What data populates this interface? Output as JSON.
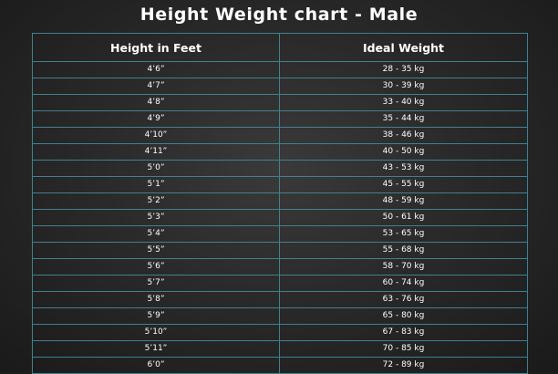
{
  "title": "Height Weight chart - Male",
  "columns": [
    "Height in  Feet",
    "Ideal Weight"
  ],
  "chart_data": {
    "type": "table",
    "title": "Height Weight chart - Male",
    "columns": [
      "Height in  Feet",
      "Ideal Weight"
    ],
    "rows": [
      [
        "4’6”",
        "28 - 35 kg"
      ],
      [
        "4’7”",
        "30 - 39 kg"
      ],
      [
        "4’8”",
        "33 - 40 kg"
      ],
      [
        "4’9”",
        "35 - 44 kg"
      ],
      [
        "4’10”",
        "38 - 46 kg"
      ],
      [
        "4’11”",
        "40 - 50 kg"
      ],
      [
        "5’0”",
        "43 - 53 kg"
      ],
      [
        "5’1”",
        "45 - 55 kg"
      ],
      [
        "5’2”",
        "48 - 59 kg"
      ],
      [
        "5’3”",
        "50 - 61 kg"
      ],
      [
        "5’4”",
        "53 - 65 kg"
      ],
      [
        "5’5”",
        "55 - 68 kg"
      ],
      [
        "5’6”",
        "58 - 70 kg"
      ],
      [
        "5’7”",
        "60 - 74 kg"
      ],
      [
        "5’8”",
        "63 - 76 kg"
      ],
      [
        "5’9”",
        "65 - 80 kg"
      ],
      [
        "5’10”",
        "67 - 83 kg"
      ],
      [
        "5’11”",
        "70 - 85 kg"
      ],
      [
        "6’0”",
        "72 - 89 kg"
      ]
    ]
  },
  "colors": {
    "border": "#3f8191",
    "text": "#ffffff",
    "background": "#2a2a2a"
  }
}
